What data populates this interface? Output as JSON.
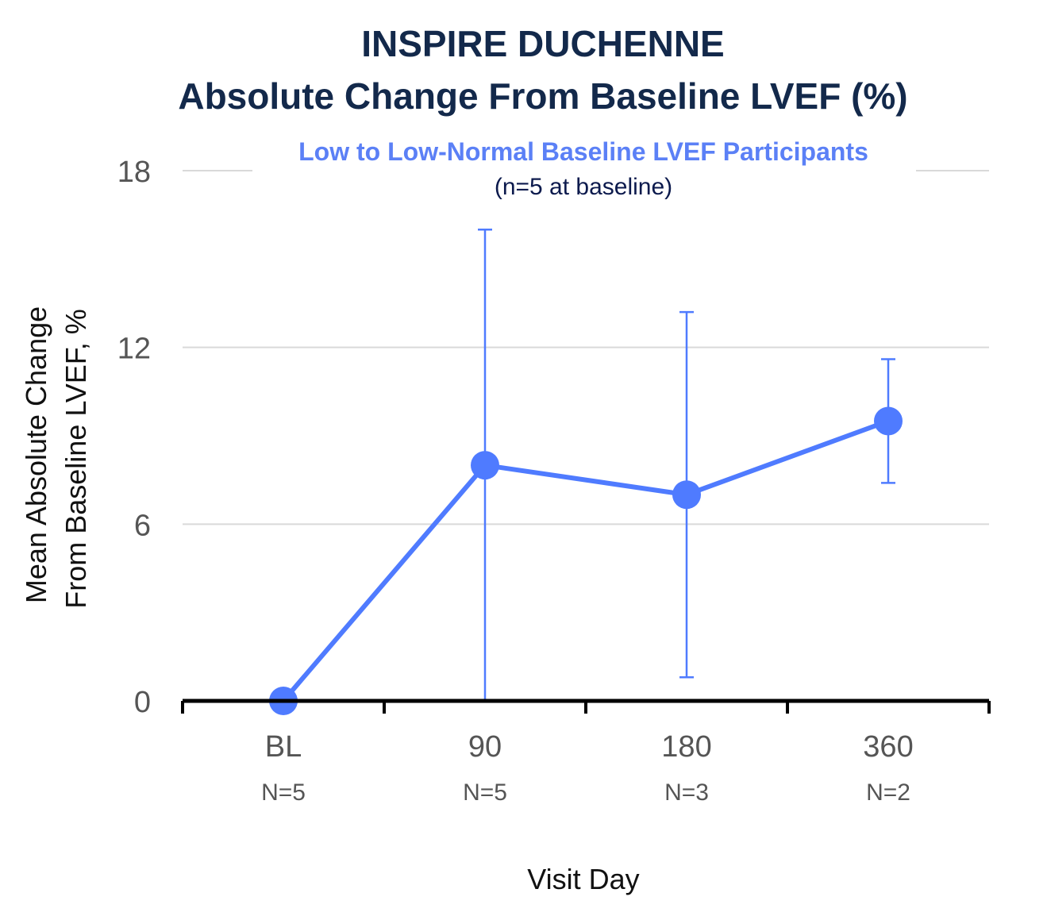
{
  "chart_data": {
    "type": "line",
    "title": [
      "INSPIRE DUCHENNE",
      "Absolute Change From Baseline LVEF (%)"
    ],
    "subtitle": "Low to Low-Normal Baseline LVEF Participants",
    "annotation": "(n=5 at baseline)",
    "xlabel": "Visit Day",
    "ylabel": [
      "Mean Absolute Change",
      "From Baseline LVEF, %"
    ],
    "categories": [
      "BL",
      "90",
      "180",
      "360"
    ],
    "category_sublabels": [
      "N=5",
      "N=5",
      "N=3",
      "N=2"
    ],
    "ylim": [
      0,
      18
    ],
    "yticks": [
      0,
      6,
      12,
      18
    ],
    "grid": true,
    "series": [
      {
        "values": [
          0,
          8.0,
          7.0,
          9.5
        ],
        "error_upper": [
          null,
          16.0,
          13.2,
          11.6
        ],
        "error_lower": [
          null,
          0.0,
          0.8,
          7.4
        ]
      }
    ],
    "colors": {
      "series": "#4f7bff",
      "title": "#13294b",
      "subtitle": "#5b80f6",
      "grid": "#d9d9d9",
      "axis": "#000000"
    }
  }
}
